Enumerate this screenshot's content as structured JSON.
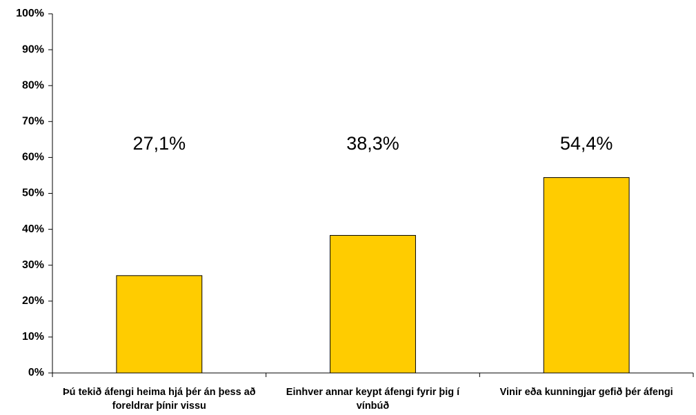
{
  "chart_data": {
    "type": "bar",
    "categories": [
      "Þú tekið áfengi heima hjá þér án þess að foreldrar þínir vissu",
      "Einhver annar keypt áfengi fyrir þig í vínbúð",
      "Vinir eða kunningjar gefið þér áfengi"
    ],
    "values": [
      27.1,
      38.3,
      54.4
    ],
    "value_labels": [
      "27,1%",
      "38,3%",
      "54,4%"
    ],
    "color": "#ffcc00",
    "ylim": [
      0,
      100
    ],
    "yticks": [
      {
        "value": 0,
        "label": "0%"
      },
      {
        "value": 10,
        "label": "10%"
      },
      {
        "value": 20,
        "label": "20%"
      },
      {
        "value": 30,
        "label": "30%"
      },
      {
        "value": 40,
        "label": "40%"
      },
      {
        "value": 50,
        "label": "50%"
      },
      {
        "value": 60,
        "label": "60%"
      },
      {
        "value": 70,
        "label": "70%"
      },
      {
        "value": 80,
        "label": "80%"
      },
      {
        "value": 90,
        "label": "90%"
      },
      {
        "value": 100,
        "label": "100%"
      }
    ],
    "grid": false
  }
}
